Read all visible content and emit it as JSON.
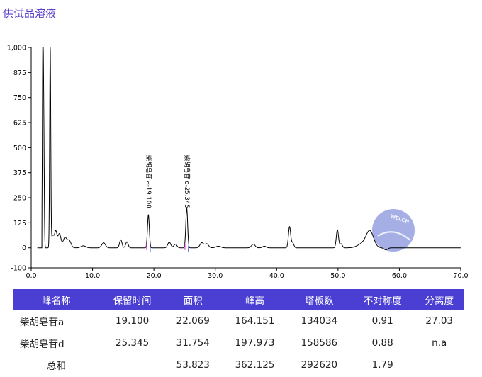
{
  "title": "供试品溶液",
  "watermark_text": "WELCH",
  "colors": {
    "title": "#5b3fc8",
    "header_bg": "#4a3fd2",
    "trace": "#000000",
    "watermark": "#5b6ed0"
  },
  "chart_data": {
    "type": "line",
    "xlim": [
      0,
      70
    ],
    "ylim": [
      -100,
      1000
    ],
    "x_ticks": [
      0,
      10,
      20,
      30,
      40,
      50,
      60,
      70
    ],
    "x_tick_labels": [
      "0.0",
      "10.0",
      "20.0",
      "30.0",
      "40.0",
      "50.0",
      "60.0",
      "70.0"
    ],
    "y_ticks": [
      -100,
      0,
      125,
      250,
      375,
      500,
      625,
      750,
      875,
      1000
    ],
    "y_tick_labels": [
      "-100",
      "0",
      "125",
      "250",
      "375",
      "500",
      "625",
      "750",
      "875",
      "1,000"
    ],
    "grid": false,
    "baseline": 0,
    "peaks": [
      {
        "rt": 1.9,
        "height": 1000,
        "width": 0.08
      },
      {
        "rt": 2.05,
        "height": 550,
        "width": 0.08
      },
      {
        "rt": 3.1,
        "height": 1000,
        "width": 0.09
      },
      {
        "rt": 3.5,
        "height": 60,
        "width": 0.2
      },
      {
        "rt": 4.0,
        "height": 80,
        "width": 0.2
      },
      {
        "rt": 4.6,
        "height": 70,
        "width": 0.25
      },
      {
        "rt": 5.5,
        "height": 50,
        "width": 0.3
      },
      {
        "rt": 6.2,
        "height": 35,
        "width": 0.3
      },
      {
        "rt": 8.5,
        "height": 10,
        "width": 0.4
      },
      {
        "rt": 11.8,
        "height": 25,
        "width": 0.3
      },
      {
        "rt": 14.6,
        "height": 40,
        "width": 0.2
      },
      {
        "rt": 15.6,
        "height": 30,
        "width": 0.2
      },
      {
        "rt": 19.1,
        "height": 164,
        "width": 0.15
      },
      {
        "rt": 22.5,
        "height": 28,
        "width": 0.25
      },
      {
        "rt": 23.5,
        "height": 18,
        "width": 0.25
      },
      {
        "rt": 25.345,
        "height": 198,
        "width": 0.15
      },
      {
        "rt": 27.8,
        "height": 25,
        "width": 0.3
      },
      {
        "rt": 28.6,
        "height": 20,
        "width": 0.3
      },
      {
        "rt": 30.5,
        "height": 8,
        "width": 0.4
      },
      {
        "rt": 36.2,
        "height": 18,
        "width": 0.3
      },
      {
        "rt": 38.0,
        "height": 8,
        "width": 0.3
      },
      {
        "rt": 42.1,
        "height": 105,
        "width": 0.18
      },
      {
        "rt": 42.6,
        "height": 25,
        "width": 0.2
      },
      {
        "rt": 49.9,
        "height": 90,
        "width": 0.18
      },
      {
        "rt": 50.5,
        "height": 20,
        "width": 0.2
      },
      {
        "rt": 55.2,
        "height": 80,
        "width": 0.6
      },
      {
        "rt": 54.0,
        "height": 20,
        "width": 0.8
      }
    ],
    "dips": [
      {
        "rt": 57.8,
        "depth": 10,
        "width": 0.3
      }
    ],
    "annotations": [
      {
        "label": "柴胡皂苷 a-19.100",
        "x": 19.1
      },
      {
        "label": "柴胡皂苷 d-25.345",
        "x": 25.345
      }
    ]
  },
  "table": {
    "headers": [
      "峰名称",
      "保留时间",
      "面积",
      "峰高",
      "塔板数",
      "不对称度",
      "分离度"
    ],
    "rows": [
      {
        "name": "柴胡皂苷a",
        "rt": "19.100",
        "area": "22.069",
        "height": "164.151",
        "plates": "134034",
        "asym": "0.91",
        "res": "27.03"
      },
      {
        "name": "柴胡皂苷d",
        "rt": "25.345",
        "area": "31.754",
        "height": "197.973",
        "plates": "158586",
        "asym": "0.88",
        "res": "n.a"
      }
    ],
    "total": {
      "name": "总和",
      "area": "53.823",
      "height": "362.125",
      "plates": "292620",
      "asym": "1.79"
    }
  }
}
